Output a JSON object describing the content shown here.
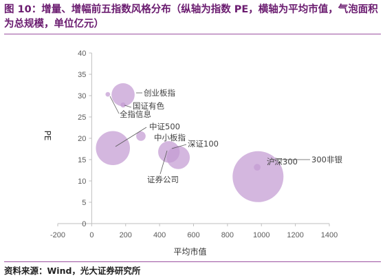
{
  "header": {
    "title": "图 10：增量、增幅前五指数风格分布（纵轴为指数 PE，横轴为平均市值，气泡面积为总规模，单位亿元）"
  },
  "footer": {
    "source": "资料来源：Wind，光大证券研究所"
  },
  "chart_data": {
    "type": "scatter",
    "title": "",
    "xlabel": "平均市值",
    "ylabel": "PE",
    "xlim": [
      -200,
      1400
    ],
    "ylim": [
      0,
      40
    ],
    "x_ticks": [
      -200,
      0,
      200,
      400,
      600,
      800,
      1000,
      1200,
      1400
    ],
    "y_ticks": [
      0,
      5,
      10,
      15,
      20,
      25,
      30,
      35,
      40
    ],
    "grid": false,
    "legend": "none",
    "bubble_color": "#c39bd3",
    "points": [
      {
        "label": "创业板指",
        "x": 185,
        "y": 30.2,
        "size": 300
      },
      {
        "label": "国证有色",
        "x": 185,
        "y": 27.8,
        "size": 15
      },
      {
        "label": "全指信息",
        "x": 95,
        "y": 30.3,
        "size": 12
      },
      {
        "label": "中证500",
        "x": 125,
        "y": 17.7,
        "size": 650
      },
      {
        "label": "中小板指",
        "x": 290,
        "y": 20.5,
        "size": 50
      },
      {
        "label": "深证100",
        "x": 455,
        "y": 16.8,
        "size": 260
      },
      {
        "label": "证券公司",
        "x": 510,
        "y": 15.5,
        "size": 300
      },
      {
        "label": "沪深300",
        "x": 980,
        "y": 11.0,
        "size": 1450
      },
      {
        "label": "300非银",
        "x": 975,
        "y": 13.2,
        "size": 25
      }
    ]
  }
}
